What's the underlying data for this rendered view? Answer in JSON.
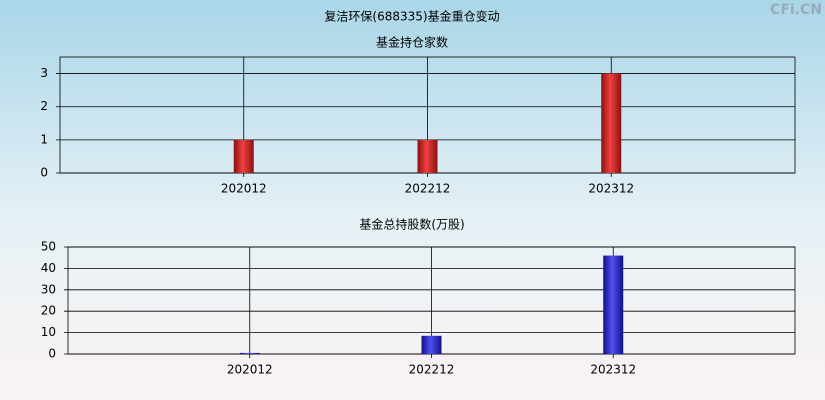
{
  "title": "复洁环保(688335)基金重仓变动",
  "watermark": "CFi.CN",
  "chart_data": [
    {
      "type": "bar",
      "title": "基金持仓家数",
      "categories": [
        "202012",
        "202212",
        "202312"
      ],
      "values": [
        1,
        1,
        3
      ],
      "color": "red",
      "ylim": [
        0,
        3.5
      ],
      "yticks": [
        0,
        1,
        2,
        3
      ],
      "grid": true
    },
    {
      "type": "bar",
      "title": "基金总持股数(万股)",
      "categories": [
        "202012",
        "202212",
        "202312"
      ],
      "values": [
        0.5,
        8.5,
        46
      ],
      "color": "blue",
      "ylim": [
        0,
        50
      ],
      "yticks": [
        0,
        10,
        20,
        30,
        40,
        50
      ],
      "grid": true
    }
  ]
}
